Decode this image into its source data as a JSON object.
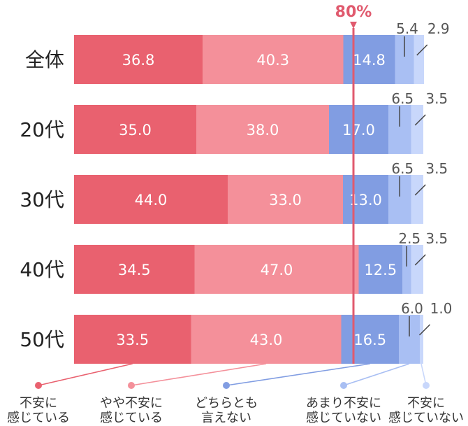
{
  "chart_data": {
    "type": "bar",
    "orientation": "horizontal",
    "stacked": true,
    "percent_scale": [
      0,
      100
    ],
    "categories": [
      "全体",
      "20代",
      "30代",
      "40代",
      "50代"
    ],
    "series": [
      {
        "name": "不安に\n感じている",
        "color": "#e9616f",
        "values": [
          36.8,
          35.0,
          44.0,
          34.5,
          33.5
        ]
      },
      {
        "name": "やや不安に\n感じている",
        "color": "#f4909a",
        "values": [
          40.3,
          38.0,
          33.0,
          47.0,
          43.0
        ]
      },
      {
        "name": "どちらとも\n言えない",
        "color": "#819de2",
        "values": [
          14.8,
          17.0,
          13.0,
          12.5,
          16.5
        ]
      },
      {
        "name": "あまり不安に\n感じていない",
        "color": "#a9bff3",
        "values": [
          5.4,
          6.5,
          6.5,
          2.5,
          6.0
        ]
      },
      {
        "name": "不安に\n感じていない",
        "color": "#c8d7fb",
        "values": [
          2.9,
          3.5,
          3.5,
          3.5,
          1.0
        ]
      }
    ],
    "marker": {
      "value": 80,
      "label": "80%",
      "color": "#e05a6e"
    },
    "grid": false,
    "legend_position": "bottom"
  }
}
